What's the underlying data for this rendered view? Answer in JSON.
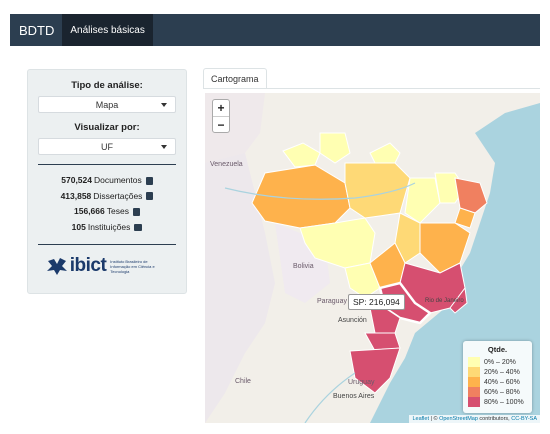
{
  "navbar": {
    "brand": "BDTD",
    "tab_active": "Análises básicas"
  },
  "sidebar": {
    "tipo_label": "Tipo de análise:",
    "tipo_value": "Mapa",
    "visualizar_label": "Visualizar por:",
    "visualizar_value": "UF",
    "stats": {
      "documentos_count": "570,524",
      "documentos_label": "Documentos",
      "dissertacoes_count": "413,858",
      "dissertacoes_label": "Dissertações",
      "teses_count": "156,666",
      "teses_label": "Teses",
      "instituicoes_count": "105",
      "instituicoes_label": "Instituições"
    },
    "logo": {
      "text": "ibict",
      "subtitle": "Instituto Brasileiro de Informação em Ciência e Tecnologia"
    }
  },
  "main": {
    "tab_label": "Cartograma",
    "tooltip": "SP: 216,094",
    "zoom_in": "+",
    "zoom_out": "−",
    "labels": {
      "venezuela": "Venezuela",
      "bolivia": "Bolivia",
      "paraguay": "Paraguay",
      "asuncion": "Asunción",
      "rio": "Rio de Janeiro",
      "uruguay": "Uruguay",
      "chile": "Chile",
      "buenos_aires": "Buenos Aires"
    },
    "legend": {
      "title": "Qtde.",
      "items": [
        "0% – 20%",
        "20% – 40%",
        "40% – 60%",
        "60% – 80%",
        "80% – 100%"
      ],
      "colors": [
        "#ffffb2",
        "#fed976",
        "#feb24c",
        "#f08060",
        "#d64f70"
      ]
    },
    "attribution": {
      "leaflet": "Leaflet",
      "sep": " | © ",
      "osm": "OpenStreetMap",
      "contrib": " contributors, ",
      "license": "CC-BY-SA"
    }
  }
}
